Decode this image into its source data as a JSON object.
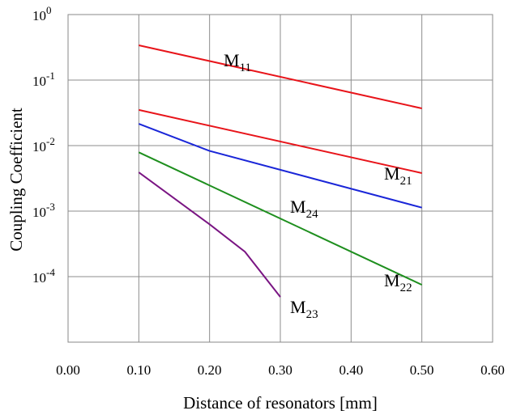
{
  "chart_data": {
    "type": "line",
    "xlabel": "Distance of resonators [mm]",
    "ylabel": "Coupling Coefficient",
    "yscale": "log",
    "xlim": [
      0.0,
      0.6
    ],
    "ylim": [
      1e-05,
      1
    ],
    "grid": true,
    "x_ticks": [
      "0.00",
      "0.10",
      "0.20",
      "0.30",
      "0.40",
      "0.50",
      "0.60"
    ],
    "y_ticks": [
      {
        "base": "10",
        "exp": "0"
      },
      {
        "base": "10",
        "exp": "-1"
      },
      {
        "base": "10",
        "exp": "-2"
      },
      {
        "base": "10",
        "exp": "-3"
      },
      {
        "base": "10",
        "exp": "-4"
      }
    ],
    "series": [
      {
        "name": "M",
        "sub": "11",
        "color": "#e8141a",
        "x": [
          0.1,
          0.5
        ],
        "y": [
          0.34,
          0.037
        ]
      },
      {
        "name": "M",
        "sub": "21",
        "color": "#e8141a",
        "x": [
          0.1,
          0.5
        ],
        "y": [
          0.035,
          0.0038
        ]
      },
      {
        "name": "M",
        "sub": "24",
        "color": "#1a26d8",
        "x": [
          0.1,
          0.2,
          0.5
        ],
        "y": [
          0.0215,
          0.0083,
          0.00113
        ]
      },
      {
        "name": "M",
        "sub": "22",
        "color": "#1e8f1e",
        "x": [
          0.1,
          0.5
        ],
        "y": [
          0.0079,
          7.5e-05
        ]
      },
      {
        "name": "M",
        "sub": "23",
        "color": "#7a1583",
        "x": [
          0.1,
          0.2,
          0.25,
          0.3
        ],
        "y": [
          0.0039,
          0.00063,
          0.00024,
          4.9e-05
        ]
      }
    ]
  }
}
